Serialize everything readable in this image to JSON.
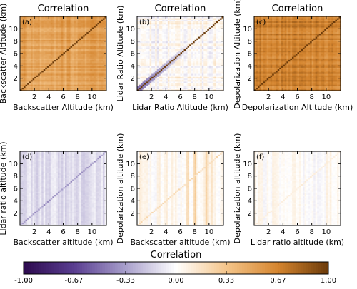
{
  "chart_data": {
    "type": "heatmap",
    "colorbar": {
      "title": "Correlation",
      "range": [
        -1.0,
        1.0
      ],
      "ticks": [
        -1.0,
        -0.67,
        -0.33,
        0.0,
        0.33,
        0.67,
        1.0
      ],
      "tick_labels": [
        "-1.00",
        "-0.67",
        "-0.33",
        "0.00",
        "0.33",
        "0.67",
        "1.00"
      ],
      "colors": [
        "#2d0a4e",
        "#5a3e91",
        "#a89fcb",
        "#ffffff",
        "#f4c58a",
        "#d5852f",
        "#6b3a09"
      ]
    },
    "panels": [
      {
        "panel_label": "(a)",
        "title": "Correlation",
        "xlabel": "Backscatter Altitude (km)",
        "ylabel": "Backscatter Altitude (km)",
        "xlim": [
          0,
          12
        ],
        "ylim": [
          0,
          12
        ],
        "xticks": [
          2,
          4,
          6,
          8,
          10
        ],
        "yticks": [
          2,
          4,
          6,
          8,
          10
        ],
        "pattern": "auto",
        "background_correlation": 0.52,
        "diagonal_correlation": 1.0
      },
      {
        "panel_label": "(b)",
        "title": "Correlation",
        "xlabel": "Lidar Ratio Altitude (km)",
        "ylabel": "Lidar Ratio Altitude (km)",
        "xlim": [
          0,
          12
        ],
        "ylim": [
          0,
          12
        ],
        "xticks": [
          2,
          4,
          6,
          8,
          10
        ],
        "yticks": [
          2,
          4,
          6,
          8,
          10
        ],
        "pattern": "auto",
        "background_correlation": 0.02,
        "diagonal_correlation": 1.0,
        "near_diagonal_anticorrelation": -0.5
      },
      {
        "panel_label": "(c)",
        "title": "Correlation",
        "xlabel": "Depolarization Altitude (km)",
        "ylabel": "Depolarization Altitude (km)",
        "xlim": [
          0,
          12
        ],
        "ylim": [
          0,
          12
        ],
        "xticks": [
          2,
          4,
          6,
          8,
          10
        ],
        "yticks": [
          2,
          4,
          6,
          8,
          10
        ],
        "pattern": "auto",
        "background_correlation": 0.68,
        "diagonal_correlation": 1.0
      },
      {
        "panel_label": "(d)",
        "title": "",
        "xlabel": "Backscatter altitude (km)",
        "ylabel": "Lidar ratio altitude (km)",
        "xlim": [
          0,
          12
        ],
        "ylim": [
          0,
          12
        ],
        "xticks": [
          2,
          4,
          6,
          8,
          10
        ],
        "yticks": [
          2,
          4,
          6,
          8,
          10
        ],
        "pattern": "cross",
        "background_correlation": -0.12,
        "diagonal_correlation": -0.45
      },
      {
        "panel_label": "(e)",
        "title": "",
        "xlabel": "Backscatter altitude (km)",
        "ylabel": "Depolarization altitude (km)",
        "xlim": [
          0,
          12
        ],
        "ylim": [
          0,
          12
        ],
        "xticks": [
          2,
          4,
          6,
          8,
          10
        ],
        "yticks": [
          2,
          4,
          6,
          8,
          10
        ],
        "pattern": "cross",
        "background_correlation": 0.04,
        "diagonal_correlation": 0.25,
        "vertical_bands": [
          {
            "x": 7.0,
            "value": 0.18
          },
          {
            "x": 8.1,
            "value": 0.3
          },
          {
            "x": 9.6,
            "value": 0.2
          },
          {
            "x": 10.4,
            "value": 0.15
          },
          {
            "x": 2.3,
            "value": -0.15
          }
        ]
      },
      {
        "panel_label": "(f)",
        "title": "",
        "xlabel": "Lidar ratio altitude (km)",
        "ylabel": "Depolarization altitude (km)",
        "xlim": [
          0,
          12
        ],
        "ylim": [
          0,
          12
        ],
        "xticks": [
          2,
          4,
          6,
          8,
          10
        ],
        "yticks": [
          2,
          4,
          6,
          8,
          10
        ],
        "pattern": "cross",
        "background_correlation": 0.02,
        "diagonal_correlation": 0.12
      }
    ]
  }
}
